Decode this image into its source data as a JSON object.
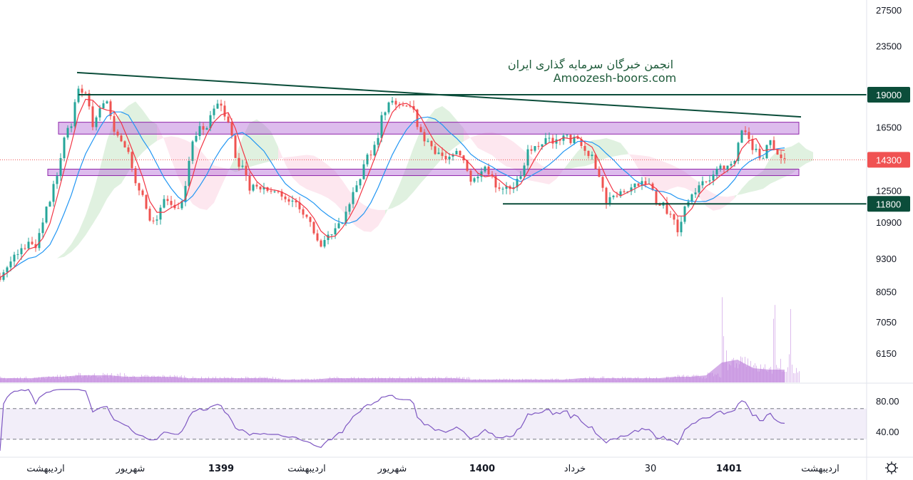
{
  "watermark": {
    "line1": "انجمن خبرگان سرمایه گذاری ایران",
    "line2": "Amoozesh-boors.com"
  },
  "colors": {
    "up": "#26a69a",
    "down": "#ef5350",
    "fast_ma": "#f23645",
    "slow_ma": "#2196f3",
    "level_line": "#0b4d3a",
    "zone": "#b36bd6",
    "rsi": "#7e57c2",
    "volume": "#b36bd6",
    "last_price": "#f05252"
  },
  "icons": {
    "settings": "gear-icon"
  },
  "chart_data": [
    {
      "type": "candlestick",
      "scale": "log",
      "ylim": [
        6000,
        28000
      ],
      "y_ticks": [
        "27500",
        "23500",
        "16500",
        "12500",
        "10900",
        "9300",
        "8050",
        "7050",
        "6150"
      ],
      "x_ticks": [
        "اردیبهشت",
        "شهریور",
        "1399",
        "اردیبهشت",
        "شهریور",
        "1400",
        "خرداد",
        "30",
        "1401",
        "اردیبهشت"
      ],
      "x_ticks_bold": [
        false,
        false,
        true,
        false,
        false,
        true,
        false,
        false,
        true,
        false
      ],
      "closes": [
        8560,
        8900,
        9380,
        9680,
        9990,
        9680,
        10790,
        12030,
        13630,
        15420,
        16930,
        19780,
        19170,
        16680,
        18020,
        18580,
        16420,
        15420,
        14950,
        12810,
        12030,
        10960,
        11130,
        12030,
        11660,
        11660,
        12810,
        15420,
        16420,
        16170,
        18020,
        18020,
        16680,
        14500,
        13630,
        12810,
        12600,
        12600,
        12480,
        12410,
        12100,
        11840,
        11660,
        11130,
        10470,
        9830,
        10310,
        10620,
        10960,
        11840,
        12600,
        13850,
        14950,
        16170,
        18020,
        18580,
        18020,
        18300,
        17470,
        15910,
        15420,
        14950,
        14720,
        14270,
        14720,
        14270,
        13000,
        13210,
        13630,
        13210,
        12410,
        12600,
        12810,
        13210,
        14720,
        15180,
        15420,
        15670,
        15420,
        16170,
        15420,
        15910,
        14950,
        14500,
        13210,
        12030,
        12220,
        12410,
        12600,
        12810,
        13000,
        12810,
        12030,
        11660,
        11300,
        10620,
        11660,
        12410,
        12810,
        13000,
        13210,
        13850,
        13850,
        14270,
        16930,
        15420,
        14720,
        14500,
        15670,
        14720,
        14300
      ],
      "volume_relative": [
        3,
        3,
        3,
        4,
        4,
        5,
        5,
        5,
        4,
        4,
        4,
        4,
        3,
        3,
        3,
        3,
        3,
        3,
        2,
        2,
        2,
        3,
        3,
        3,
        3,
        3,
        3,
        3,
        3,
        3,
        2,
        2,
        2,
        2,
        2,
        2,
        2,
        3,
        3,
        3,
        3,
        3,
        3,
        4,
        4,
        5,
        14,
        16,
        10,
        9,
        9
      ],
      "last_price": {
        "value": 14300,
        "label": "14300"
      },
      "levels": [
        {
          "value": 19000,
          "label": "19000"
        },
        {
          "value": 11800,
          "label": "11800"
        }
      ],
      "trendline": {
        "from": 20930,
        "to": 17250
      },
      "zones": [
        {
          "top": 16850,
          "bottom": 16000
        },
        {
          "top": 13730,
          "bottom": 13350
        }
      ],
      "indicators": [
        "moving average fast",
        "moving average slow",
        "ichimoku cloud",
        "volume"
      ]
    },
    {
      "type": "line",
      "indicator": "RSI",
      "ylim": [
        8,
        101
      ],
      "y_ticks": [
        "80.00",
        "40.00"
      ],
      "bands": [
        70,
        30
      ]
    }
  ]
}
